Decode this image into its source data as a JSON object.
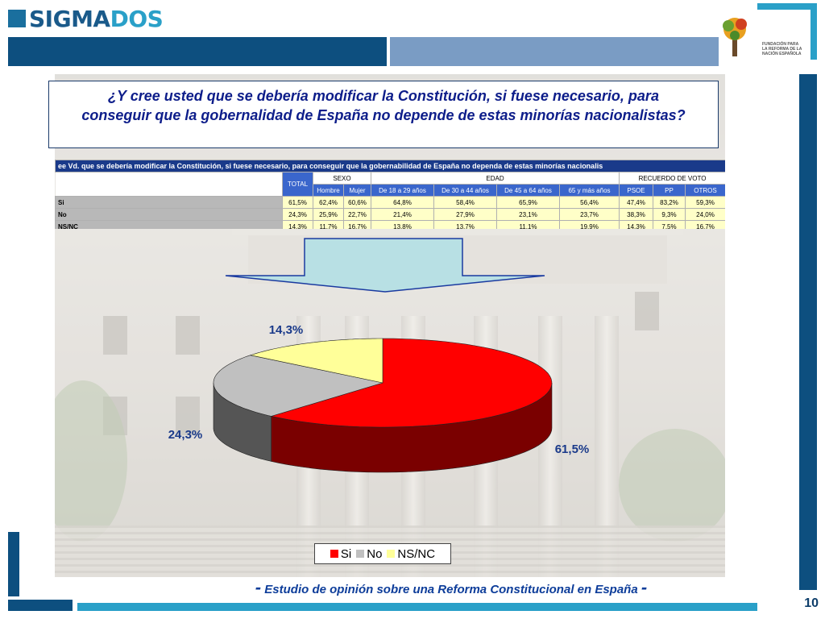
{
  "header": {
    "brand_part1": "SIGMA",
    "brand_part2": "DOS",
    "foundation_text": "FUNDACIÓN PARA LA REFORMA DE LA NACIÓN ESPAÑOLA"
  },
  "question": "¿Y cree usted que se debería modificar la Constitución, si fuese necesario, para conseguir que la gobernalidad de España no depende de estas minorías nacionalistas?",
  "table": {
    "caption": "ee Vd. que se debería modificar la Constitución, si fuese necesario, para conseguir que la gobernabilidad de España no dependa de estas minorías nacionalis",
    "group_headers": {
      "total": "TOTAL",
      "sexo": "SEXO",
      "edad": "EDAD",
      "voto": "RECUERDO DE VOTO"
    },
    "columns": [
      "Hombre",
      "Mujer",
      "De 18 a 29 años",
      "De 30 a 44 años",
      "De 45 a 64 años",
      "65 y más años",
      "PSOE",
      "PP",
      "OTROS"
    ],
    "rows": [
      {
        "label": "Si",
        "values": [
          "61,5%",
          "62,4%",
          "60,6%",
          "64,8%",
          "58,4%",
          "65,9%",
          "56,4%",
          "47,4%",
          "83,2%",
          "59,3%"
        ]
      },
      {
        "label": "No",
        "values": [
          "24,3%",
          "25,9%",
          "22,7%",
          "21,4%",
          "27,9%",
          "23,1%",
          "23,7%",
          "38,3%",
          "9,3%",
          "24,0%"
        ]
      },
      {
        "label": "NS/NC",
        "values": [
          "14,3%",
          "11,7%",
          "16,7%",
          "13,8%",
          "13,7%",
          "11,1%",
          "19,9%",
          "14,3%",
          "7,5%",
          "16,7%"
        ]
      }
    ]
  },
  "chart_data": {
    "type": "pie",
    "categories": [
      "Si",
      "No",
      "NS/NC"
    ],
    "values": [
      61.5,
      24.3,
      14.3
    ],
    "data_labels": [
      "61,5%",
      "24,3%",
      "14,3%"
    ],
    "colors": [
      "#ff0000",
      "#c0c0c0",
      "#ffff99"
    ],
    "legend": [
      "Si",
      "No",
      "NS/NC"
    ],
    "legend_position": "bottom"
  },
  "footer": {
    "text": "Estudio de opinión sobre una Reforma Constitucional en España",
    "dash": "-",
    "page": "10"
  }
}
